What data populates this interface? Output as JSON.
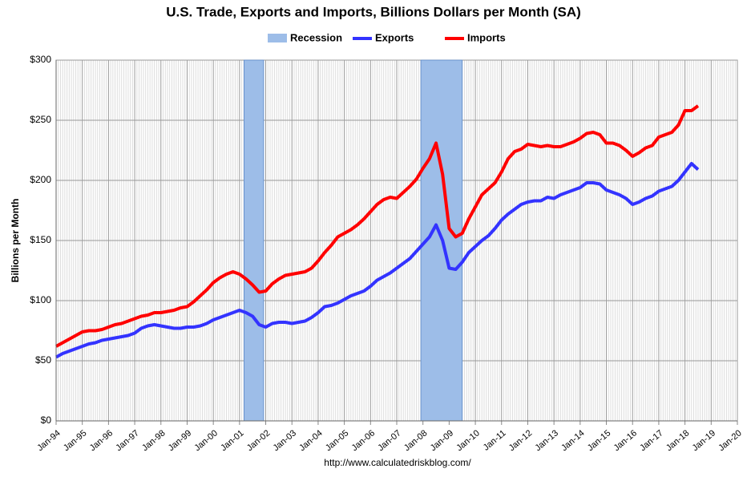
{
  "chart_data": {
    "type": "line",
    "title": "U.S. Trade, Exports and Imports, Billions Dollars per Month (SA)",
    "y_label": "Billions per Month",
    "source": "http://www.calculatedriskblog.com/",
    "shaded": {
      "name": "Recession",
      "color": "#9dbde8",
      "ranges": [
        [
          2001.17,
          2001.92
        ],
        [
          2007.92,
          2009.5
        ]
      ]
    },
    "x": [
      1994,
      1994.25,
      1994.5,
      1994.75,
      1995,
      1995.25,
      1995.5,
      1995.75,
      1996,
      1996.25,
      1996.5,
      1996.75,
      1997,
      1997.25,
      1997.5,
      1997.75,
      1998,
      1998.25,
      1998.5,
      1998.75,
      1999,
      1999.25,
      1999.5,
      1999.75,
      2000,
      2000.25,
      2000.5,
      2000.75,
      2001,
      2001.25,
      2001.5,
      2001.75,
      2002,
      2002.25,
      2002.5,
      2002.75,
      2003,
      2003.25,
      2003.5,
      2003.75,
      2004,
      2004.25,
      2004.5,
      2004.75,
      2005,
      2005.25,
      2005.5,
      2005.75,
      2006,
      2006.25,
      2006.5,
      2006.75,
      2007,
      2007.25,
      2007.5,
      2007.75,
      2008,
      2008.25,
      2008.5,
      2008.75,
      2009,
      2009.25,
      2009.5,
      2009.75,
      2010,
      2010.25,
      2010.5,
      2010.75,
      2011,
      2011.25,
      2011.5,
      2011.75,
      2012,
      2012.25,
      2012.5,
      2012.75,
      2013,
      2013.25,
      2013.5,
      2013.75,
      2014,
      2014.25,
      2014.5,
      2014.75,
      2015,
      2015.25,
      2015.5,
      2015.75,
      2016,
      2016.25,
      2016.5,
      2016.75,
      2017,
      2017.25,
      2017.5,
      2017.75,
      2018,
      2018.25,
      2018.5
    ],
    "series": [
      {
        "name": "Exports",
        "color": "#3333ff",
        "values": [
          53,
          56,
          58,
          60,
          62,
          64,
          65,
          67,
          68,
          69,
          70,
          71,
          73,
          77,
          79,
          80,
          79,
          78,
          77,
          77,
          78,
          78,
          79,
          81,
          84,
          86,
          88,
          90,
          92,
          90,
          87,
          80,
          78,
          81,
          82,
          82,
          81,
          82,
          83,
          86,
          90,
          95,
          96,
          98,
          101,
          104,
          106,
          108,
          112,
          117,
          120,
          123,
          127,
          131,
          135,
          141,
          147,
          153,
          163,
          150,
          127,
          126,
          132,
          140,
          145,
          150,
          154,
          160,
          167,
          172,
          176,
          180,
          182,
          183,
          183,
          186,
          185,
          188,
          190,
          192,
          194,
          198,
          198,
          197,
          192,
          190,
          188,
          185,
          180,
          182,
          185,
          187,
          191,
          193,
          195,
          200,
          207,
          214,
          209
        ]
      },
      {
        "name": "Imports",
        "color": "#ff0000",
        "values": [
          62,
          65,
          68,
          71,
          74,
          75,
          75,
          76,
          78,
          80,
          81,
          83,
          85,
          87,
          88,
          90,
          90,
          91,
          92,
          94,
          95,
          99,
          104,
          109,
          115,
          119,
          122,
          124,
          122,
          118,
          113,
          107,
          108,
          114,
          118,
          121,
          122,
          123,
          124,
          127,
          133,
          140,
          146,
          153,
          156,
          159,
          163,
          168,
          174,
          180,
          184,
          186,
          185,
          190,
          195,
          201,
          210,
          218,
          231,
          205,
          160,
          153,
          156,
          168,
          178,
          188,
          193,
          198,
          207,
          218,
          224,
          226,
          230,
          229,
          228,
          229,
          228,
          228,
          230,
          232,
          235,
          239,
          240,
          238,
          231,
          231,
          229,
          225,
          220,
          223,
          227,
          229,
          236,
          238,
          240,
          246,
          258,
          258,
          262
        ]
      }
    ],
    "xlim": [
      1994,
      2020
    ],
    "xticks": [
      {
        "value": 1994,
        "label": "Jan-94"
      },
      {
        "value": 1995,
        "label": "Jan-95"
      },
      {
        "value": 1996,
        "label": "Jan-96"
      },
      {
        "value": 1997,
        "label": "Jan-97"
      },
      {
        "value": 1998,
        "label": "Jan-98"
      },
      {
        "value": 1999,
        "label": "Jan-99"
      },
      {
        "value": 2000,
        "label": "Jan-00"
      },
      {
        "value": 2001,
        "label": "Jan-01"
      },
      {
        "value": 2002,
        "label": "Jan-02"
      },
      {
        "value": 2003,
        "label": "Jan-03"
      },
      {
        "value": 2004,
        "label": "Jan-04"
      },
      {
        "value": 2005,
        "label": "Jan-05"
      },
      {
        "value": 2006,
        "label": "Jan-06"
      },
      {
        "value": 2007,
        "label": "Jan-07"
      },
      {
        "value": 2008,
        "label": "Jan-08"
      },
      {
        "value": 2009,
        "label": "Jan-09"
      },
      {
        "value": 2010,
        "label": "Jan-10"
      },
      {
        "value": 2011,
        "label": "Jan-11"
      },
      {
        "value": 2012,
        "label": "Jan-12"
      },
      {
        "value": 2013,
        "label": "Jan-13"
      },
      {
        "value": 2014,
        "label": "Jan-14"
      },
      {
        "value": 2015,
        "label": "Jan-15"
      },
      {
        "value": 2016,
        "label": "Jan-16"
      },
      {
        "value": 2017,
        "label": "Jan-17"
      },
      {
        "value": 2018,
        "label": "Jan-18"
      },
      {
        "value": 2019,
        "label": "Jan-19"
      },
      {
        "value": 2020,
        "label": "Jan-20"
      }
    ],
    "ylim": [
      0,
      300
    ],
    "yticks": [
      {
        "value": 0,
        "label": "$0"
      },
      {
        "value": 50,
        "label": "$50"
      },
      {
        "value": 100,
        "label": "$100"
      },
      {
        "value": 150,
        "label": "$150"
      },
      {
        "value": 200,
        "label": "$200"
      },
      {
        "value": 250,
        "label": "$250"
      },
      {
        "value": 300,
        "label": "$300"
      }
    ],
    "grid": true
  }
}
